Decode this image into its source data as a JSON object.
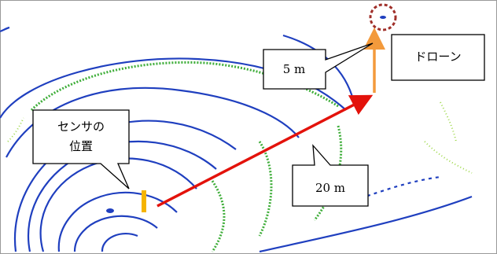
{
  "sensor_callout": {
    "lines": [
      "センサの",
      "位置"
    ]
  },
  "height_callout": {
    "label": "5 m"
  },
  "drone_callout": {
    "label": "ドローン"
  },
  "distance_callout": {
    "label": "20 m"
  }
}
